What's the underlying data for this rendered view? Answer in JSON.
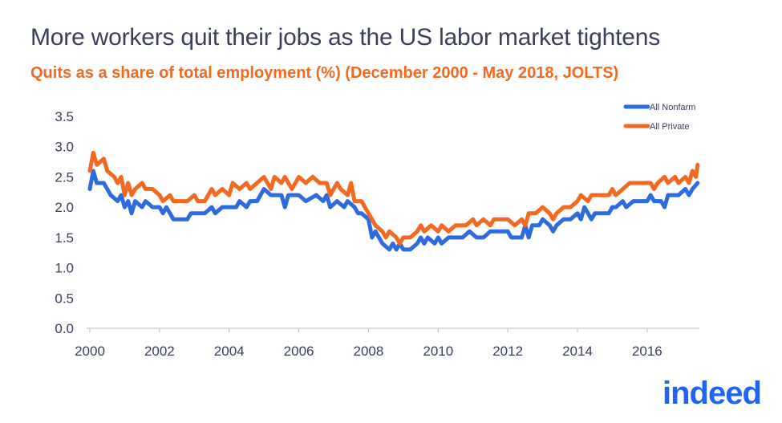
{
  "chart_data": {
    "type": "line",
    "title": "More workers quit their jobs as the US labor market tightens",
    "subtitle": "Quits as a share of total employment (%) (December 2000 - May 2018, JOLTS)",
    "xlabel": "",
    "ylabel": "",
    "xlim": [
      2000,
      2017.5
    ],
    "ylim": [
      0,
      3.5
    ],
    "yticks": [
      "0.0",
      "0.5",
      "1.0",
      "1.5",
      "2.0",
      "2.5",
      "3.0",
      "3.5"
    ],
    "xticks": [
      "2000",
      "2002",
      "2004",
      "2006",
      "2008",
      "2010",
      "2012",
      "2014",
      "2016"
    ],
    "grid": false,
    "legend_position": "top-right",
    "series": [
      {
        "name": "All Nonfarm",
        "color": "#2f6be0",
        "points": [
          [
            2000.0,
            2.3
          ],
          [
            2000.1,
            2.6
          ],
          [
            2000.2,
            2.4
          ],
          [
            2000.4,
            2.4
          ],
          [
            2000.6,
            2.2
          ],
          [
            2000.8,
            2.1
          ],
          [
            2000.9,
            2.2
          ],
          [
            2001.0,
            2.0
          ],
          [
            2001.1,
            2.1
          ],
          [
            2001.2,
            1.9
          ],
          [
            2001.3,
            2.1
          ],
          [
            2001.5,
            2.0
          ],
          [
            2001.6,
            2.1
          ],
          [
            2001.8,
            2.0
          ],
          [
            2002.0,
            2.0
          ],
          [
            2002.1,
            1.9
          ],
          [
            2002.2,
            2.0
          ],
          [
            2002.4,
            1.8
          ],
          [
            2002.6,
            1.8
          ],
          [
            2002.8,
            1.8
          ],
          [
            2002.9,
            1.9
          ],
          [
            2003.1,
            1.9
          ],
          [
            2003.3,
            1.9
          ],
          [
            2003.5,
            2.0
          ],
          [
            2003.6,
            1.9
          ],
          [
            2003.8,
            2.0
          ],
          [
            2004.0,
            2.0
          ],
          [
            2004.2,
            2.0
          ],
          [
            2004.3,
            2.1
          ],
          [
            2004.5,
            2.0
          ],
          [
            2004.6,
            2.1
          ],
          [
            2004.8,
            2.1
          ],
          [
            2005.0,
            2.3
          ],
          [
            2005.2,
            2.2
          ],
          [
            2005.4,
            2.2
          ],
          [
            2005.5,
            2.2
          ],
          [
            2005.6,
            2.0
          ],
          [
            2005.7,
            2.2
          ],
          [
            2006.0,
            2.2
          ],
          [
            2006.2,
            2.1
          ],
          [
            2006.5,
            2.2
          ],
          [
            2006.7,
            2.1
          ],
          [
            2006.8,
            2.2
          ],
          [
            2006.9,
            2.0
          ],
          [
            2007.1,
            2.1
          ],
          [
            2007.3,
            2.0
          ],
          [
            2007.4,
            2.1
          ],
          [
            2007.6,
            2.0
          ],
          [
            2007.7,
            1.9
          ],
          [
            2007.8,
            1.9
          ],
          [
            2008.0,
            1.8
          ],
          [
            2008.1,
            1.5
          ],
          [
            2008.2,
            1.6
          ],
          [
            2008.4,
            1.4
          ],
          [
            2008.6,
            1.3
          ],
          [
            2008.7,
            1.4
          ],
          [
            2008.8,
            1.3
          ],
          [
            2008.9,
            1.4
          ],
          [
            2009.0,
            1.3
          ],
          [
            2009.2,
            1.3
          ],
          [
            2009.4,
            1.4
          ],
          [
            2009.5,
            1.5
          ],
          [
            2009.6,
            1.4
          ],
          [
            2009.7,
            1.5
          ],
          [
            2009.9,
            1.4
          ],
          [
            2010.0,
            1.5
          ],
          [
            2010.1,
            1.4
          ],
          [
            2010.3,
            1.5
          ],
          [
            2010.5,
            1.5
          ],
          [
            2010.7,
            1.5
          ],
          [
            2010.9,
            1.6
          ],
          [
            2011.1,
            1.5
          ],
          [
            2011.3,
            1.5
          ],
          [
            2011.5,
            1.6
          ],
          [
            2011.7,
            1.6
          ],
          [
            2011.9,
            1.6
          ],
          [
            2012.0,
            1.6
          ],
          [
            2012.1,
            1.5
          ],
          [
            2012.3,
            1.5
          ],
          [
            2012.4,
            1.5
          ],
          [
            2012.5,
            1.7
          ],
          [
            2012.6,
            1.5
          ],
          [
            2012.7,
            1.7
          ],
          [
            2012.9,
            1.7
          ],
          [
            2013.0,
            1.8
          ],
          [
            2013.2,
            1.7
          ],
          [
            2013.3,
            1.6
          ],
          [
            2013.4,
            1.7
          ],
          [
            2013.6,
            1.8
          ],
          [
            2013.8,
            1.8
          ],
          [
            2014.0,
            1.9
          ],
          [
            2014.1,
            1.8
          ],
          [
            2014.2,
            2.0
          ],
          [
            2014.4,
            1.8
          ],
          [
            2014.5,
            1.9
          ],
          [
            2014.7,
            1.9
          ],
          [
            2014.9,
            1.9
          ],
          [
            2015.0,
            2.0
          ],
          [
            2015.1,
            2.0
          ],
          [
            2015.3,
            2.1
          ],
          [
            2015.4,
            2.0
          ],
          [
            2015.6,
            2.1
          ],
          [
            2015.8,
            2.1
          ],
          [
            2016.0,
            2.1
          ],
          [
            2016.1,
            2.2
          ],
          [
            2016.2,
            2.1
          ],
          [
            2016.4,
            2.1
          ],
          [
            2016.5,
            2.0
          ],
          [
            2016.6,
            2.2
          ],
          [
            2016.8,
            2.2
          ],
          [
            2016.9,
            2.2
          ],
          [
            2017.1,
            2.3
          ],
          [
            2017.2,
            2.2
          ],
          [
            2017.3,
            2.3
          ],
          [
            2017.45,
            2.4
          ]
        ]
      },
      {
        "name": "All Private",
        "color": "#f26a21",
        "points": [
          [
            2000.0,
            2.6
          ],
          [
            2000.1,
            2.9
          ],
          [
            2000.2,
            2.7
          ],
          [
            2000.4,
            2.8
          ],
          [
            2000.5,
            2.6
          ],
          [
            2000.7,
            2.5
          ],
          [
            2000.8,
            2.4
          ],
          [
            2000.9,
            2.5
          ],
          [
            2001.0,
            2.2
          ],
          [
            2001.1,
            2.4
          ],
          [
            2001.2,
            2.2
          ],
          [
            2001.3,
            2.3
          ],
          [
            2001.5,
            2.4
          ],
          [
            2001.6,
            2.3
          ],
          [
            2001.8,
            2.3
          ],
          [
            2002.0,
            2.2
          ],
          [
            2002.1,
            2.1
          ],
          [
            2002.3,
            2.2
          ],
          [
            2002.4,
            2.1
          ],
          [
            2002.6,
            2.1
          ],
          [
            2002.8,
            2.1
          ],
          [
            2003.0,
            2.2
          ],
          [
            2003.1,
            2.1
          ],
          [
            2003.3,
            2.1
          ],
          [
            2003.5,
            2.3
          ],
          [
            2003.6,
            2.2
          ],
          [
            2003.8,
            2.3
          ],
          [
            2004.0,
            2.2
          ],
          [
            2004.1,
            2.4
          ],
          [
            2004.3,
            2.3
          ],
          [
            2004.5,
            2.4
          ],
          [
            2004.6,
            2.3
          ],
          [
            2004.8,
            2.4
          ],
          [
            2005.0,
            2.5
          ],
          [
            2005.2,
            2.3
          ],
          [
            2005.3,
            2.5
          ],
          [
            2005.5,
            2.4
          ],
          [
            2005.6,
            2.5
          ],
          [
            2005.8,
            2.3
          ],
          [
            2006.0,
            2.5
          ],
          [
            2006.2,
            2.4
          ],
          [
            2006.4,
            2.5
          ],
          [
            2006.6,
            2.4
          ],
          [
            2006.8,
            2.4
          ],
          [
            2006.9,
            2.2
          ],
          [
            2007.1,
            2.4
          ],
          [
            2007.2,
            2.3
          ],
          [
            2007.4,
            2.2
          ],
          [
            2007.5,
            2.4
          ],
          [
            2007.6,
            2.1
          ],
          [
            2007.8,
            2.1
          ],
          [
            2008.0,
            1.9
          ],
          [
            2008.1,
            1.8
          ],
          [
            2008.2,
            1.7
          ],
          [
            2008.4,
            1.6
          ],
          [
            2008.5,
            1.5
          ],
          [
            2008.6,
            1.6
          ],
          [
            2008.8,
            1.5
          ],
          [
            2008.9,
            1.4
          ],
          [
            2009.0,
            1.5
          ],
          [
            2009.2,
            1.5
          ],
          [
            2009.4,
            1.6
          ],
          [
            2009.5,
            1.7
          ],
          [
            2009.6,
            1.6
          ],
          [
            2009.8,
            1.7
          ],
          [
            2010.0,
            1.6
          ],
          [
            2010.1,
            1.7
          ],
          [
            2010.3,
            1.6
          ],
          [
            2010.5,
            1.7
          ],
          [
            2010.8,
            1.7
          ],
          [
            2011.0,
            1.8
          ],
          [
            2011.1,
            1.7
          ],
          [
            2011.3,
            1.8
          ],
          [
            2011.5,
            1.7
          ],
          [
            2011.6,
            1.8
          ],
          [
            2011.9,
            1.8
          ],
          [
            2012.0,
            1.8
          ],
          [
            2012.2,
            1.7
          ],
          [
            2012.4,
            1.8
          ],
          [
            2012.5,
            1.7
          ],
          [
            2012.6,
            1.9
          ],
          [
            2012.8,
            1.9
          ],
          [
            2013.0,
            2.0
          ],
          [
            2013.2,
            1.9
          ],
          [
            2013.3,
            1.8
          ],
          [
            2013.4,
            1.9
          ],
          [
            2013.6,
            2.0
          ],
          [
            2013.8,
            2.0
          ],
          [
            2014.0,
            2.1
          ],
          [
            2014.1,
            2.2
          ],
          [
            2014.3,
            2.1
          ],
          [
            2014.4,
            2.2
          ],
          [
            2014.6,
            2.2
          ],
          [
            2014.9,
            2.2
          ],
          [
            2015.0,
            2.3
          ],
          [
            2015.1,
            2.2
          ],
          [
            2015.3,
            2.3
          ],
          [
            2015.5,
            2.4
          ],
          [
            2015.7,
            2.4
          ],
          [
            2015.9,
            2.4
          ],
          [
            2016.1,
            2.4
          ],
          [
            2016.2,
            2.3
          ],
          [
            2016.3,
            2.4
          ],
          [
            2016.5,
            2.5
          ],
          [
            2016.6,
            2.4
          ],
          [
            2016.8,
            2.5
          ],
          [
            2016.9,
            2.4
          ],
          [
            2017.1,
            2.5
          ],
          [
            2017.2,
            2.4
          ],
          [
            2017.3,
            2.6
          ],
          [
            2017.4,
            2.5
          ],
          [
            2017.45,
            2.7
          ]
        ]
      }
    ]
  },
  "branding": {
    "logo_text": "indeed",
    "logo_color": "#2164f3"
  }
}
